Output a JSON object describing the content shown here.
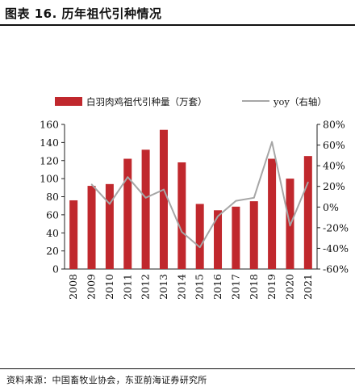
{
  "header": {
    "title": "图表 16. 历年祖代引种情况"
  },
  "footer": {
    "source": "资料来源：中国畜牧业协会，东亚前海证券研究所"
  },
  "chart_data": {
    "type": "bar",
    "categories": [
      "2008",
      "2009",
      "2010",
      "2011",
      "2012",
      "2013",
      "2014",
      "2015",
      "2016",
      "2017",
      "2018",
      "2019",
      "2020",
      "2021"
    ],
    "series": [
      {
        "name": "白羽肉鸡祖代引种量（万套）",
        "type": "bar",
        "axis": "left",
        "color": "#c0282d",
        "values": [
          76,
          92,
          94,
          122,
          132,
          154,
          118,
          72,
          65,
          69,
          75,
          122,
          100,
          125
        ]
      },
      {
        "name": "yoy（右轴）",
        "type": "line",
        "axis": "right",
        "color": "#a6a6a6",
        "values": [
          null,
          22,
          3,
          29,
          9,
          17,
          -24,
          -39,
          -9,
          6,
          9,
          63,
          -18,
          24
        ]
      }
    ],
    "y_left": {
      "ylim": [
        0,
        160
      ],
      "ticks": [
        0,
        20,
        40,
        60,
        80,
        100,
        120,
        140,
        160
      ]
    },
    "y_right": {
      "ylim": [
        -60,
        80
      ],
      "ticks": [
        "-60%",
        "-40%",
        "-20%",
        "0%",
        "20%",
        "40%",
        "60%",
        "80%"
      ]
    },
    "legend_position": "top",
    "grid": false
  }
}
